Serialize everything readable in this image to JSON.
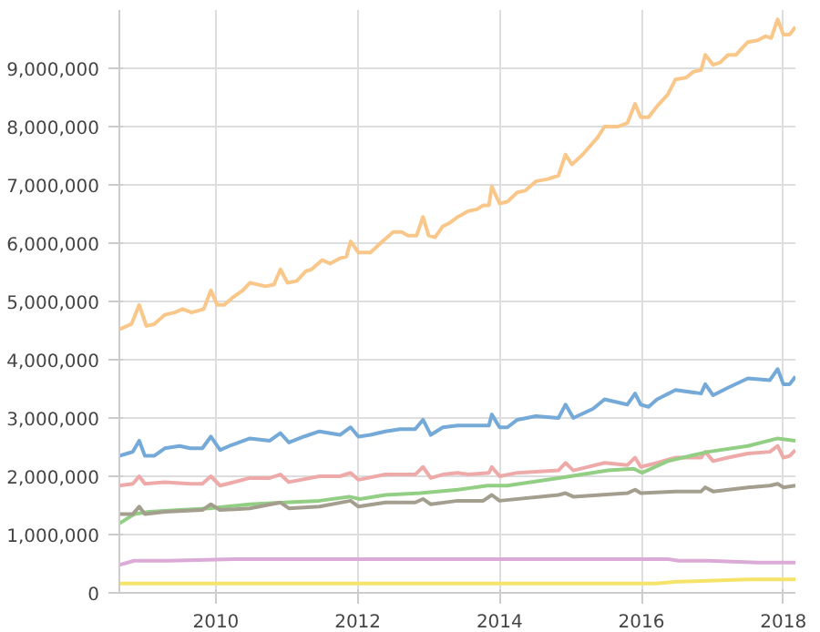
{
  "chart_data": {
    "type": "line",
    "xlim": [
      2008.64,
      2018.17
    ],
    "ylim": [
      0,
      10000000
    ],
    "xticks": [
      2010,
      2012,
      2014,
      2016,
      2018
    ],
    "yticks": [
      0,
      {
        "value": 1000000,
        "label": "1,000,000"
      },
      {
        "value": 2000000,
        "label": "2,000,000"
      },
      {
        "value": 3000000,
        "label": "3,000,000"
      },
      {
        "value": 4000000,
        "label": "4,000,000"
      },
      {
        "value": 5000000,
        "label": "5,000,000"
      },
      {
        "value": 6000000,
        "label": "6,000,000"
      },
      {
        "value": 7000000,
        "label": "7,000,000"
      },
      {
        "value": 8000000,
        "label": "8,000,000"
      },
      {
        "value": 9000000,
        "label": "9,000,000"
      }
    ],
    "grid": true,
    "line_style": "solid",
    "marker": "none",
    "series": [
      {
        "color": "#fac78a",
        "x": [
          2008.64,
          2008.75,
          2008.81,
          2008.92,
          2009.02,
          2009.13,
          2009.28,
          2009.42,
          2009.53,
          2009.66,
          2009.83,
          2009.93,
          2010.02,
          2010.12,
          2010.23,
          2010.38,
          2010.48,
          2010.7,
          2010.82,
          2010.91,
          2011.01,
          2011.14,
          2011.27,
          2011.35,
          2011.5,
          2011.61,
          2011.75,
          2011.84,
          2011.9,
          2012.01,
          2012.18,
          2012.35,
          2012.5,
          2012.62,
          2012.71,
          2012.83,
          2012.92,
          2013.0,
          2013.09,
          2013.2,
          2013.3,
          2013.41,
          2013.56,
          2013.68,
          2013.77,
          2013.85,
          2013.89,
          2014.0,
          2014.11,
          2014.25,
          2014.36,
          2014.51,
          2014.68,
          2014.83,
          2014.93,
          2015.02,
          2015.17,
          2015.38,
          2015.48,
          2015.67,
          2015.8,
          2015.91,
          2015.99,
          2016.1,
          2016.22,
          2016.37,
          2016.48,
          2016.63,
          2016.73,
          2016.84,
          2016.9,
          2017.01,
          2017.11,
          2017.22,
          2017.33,
          2017.5,
          2017.64,
          2017.75,
          2017.83,
          2017.92,
          2018.0,
          2018.09,
          2018.17
        ],
        "values": [
          4520000,
          4580000,
          4610000,
          4940000,
          4580000,
          4610000,
          4770000,
          4810000,
          4870000,
          4810000,
          4870000,
          5190000,
          4940000,
          4940000,
          5060000,
          5190000,
          5320000,
          5260000,
          5290000,
          5550000,
          5320000,
          5350000,
          5520000,
          5550000,
          5710000,
          5650000,
          5740000,
          5770000,
          6030000,
          5840000,
          5840000,
          6030000,
          6190000,
          6190000,
          6130000,
          6130000,
          6450000,
          6130000,
          6100000,
          6290000,
          6350000,
          6450000,
          6550000,
          6580000,
          6650000,
          6650000,
          6970000,
          6680000,
          6710000,
          6870000,
          6900000,
          7060000,
          7100000,
          7160000,
          7520000,
          7350000,
          7520000,
          7810000,
          8000000,
          8000000,
          8060000,
          8390000,
          8160000,
          8160000,
          8350000,
          8550000,
          8810000,
          8840000,
          8940000,
          8970000,
          9230000,
          9060000,
          9100000,
          9230000,
          9230000,
          9450000,
          9480000,
          9550000,
          9520000,
          9840000,
          9580000,
          9580000,
          9710000
        ]
      },
      {
        "color": "#74a9d8",
        "x": [
          2008.64,
          2008.75,
          2008.83,
          2008.92,
          2009.0,
          2009.13,
          2009.28,
          2009.49,
          2009.64,
          2009.81,
          2009.93,
          2010.06,
          2010.19,
          2010.48,
          2010.76,
          2010.91,
          2011.03,
          2011.24,
          2011.46,
          2011.75,
          2011.9,
          2012.01,
          2012.18,
          2012.39,
          2012.6,
          2012.81,
          2012.92,
          2013.03,
          2013.2,
          2013.41,
          2013.56,
          2013.77,
          2013.85,
          2013.89,
          2014.0,
          2014.11,
          2014.25,
          2014.51,
          2014.83,
          2014.93,
          2015.04,
          2015.32,
          2015.48,
          2015.8,
          2015.91,
          2015.99,
          2016.1,
          2016.22,
          2016.48,
          2016.84,
          2016.9,
          2017.01,
          2017.22,
          2017.5,
          2017.81,
          2017.92,
          2018.0,
          2018.09,
          2018.17
        ],
        "values": [
          2350000,
          2390000,
          2420000,
          2610000,
          2350000,
          2350000,
          2480000,
          2520000,
          2480000,
          2480000,
          2680000,
          2450000,
          2520000,
          2650000,
          2610000,
          2740000,
          2580000,
          2680000,
          2770000,
          2710000,
          2840000,
          2680000,
          2710000,
          2770000,
          2810000,
          2810000,
          2970000,
          2710000,
          2840000,
          2870000,
          2870000,
          2870000,
          2870000,
          3060000,
          2840000,
          2840000,
          2970000,
          3030000,
          3000000,
          3230000,
          3000000,
          3160000,
          3320000,
          3230000,
          3420000,
          3230000,
          3190000,
          3320000,
          3480000,
          3420000,
          3580000,
          3390000,
          3520000,
          3680000,
          3650000,
          3840000,
          3580000,
          3580000,
          3710000
        ]
      },
      {
        "color": "#eeaaa8",
        "x": [
          2008.64,
          2008.83,
          2008.92,
          2009.0,
          2009.28,
          2009.64,
          2009.81,
          2009.93,
          2010.06,
          2010.48,
          2010.76,
          2010.91,
          2011.03,
          2011.46,
          2011.75,
          2011.9,
          2012.01,
          2012.39,
          2012.81,
          2012.92,
          2013.03,
          2013.2,
          2013.41,
          2013.56,
          2013.85,
          2013.89,
          2014.0,
          2014.25,
          2014.83,
          2014.93,
          2015.04,
          2015.48,
          2015.8,
          2015.91,
          2015.99,
          2016.22,
          2016.48,
          2016.84,
          2016.9,
          2017.01,
          2017.22,
          2017.5,
          2017.81,
          2017.92,
          2018.0,
          2018.09,
          2018.17
        ],
        "values": [
          1840000,
          1870000,
          2000000,
          1870000,
          1900000,
          1870000,
          1870000,
          2000000,
          1840000,
          1970000,
          1970000,
          2030000,
          1900000,
          2000000,
          2000000,
          2060000,
          1940000,
          2030000,
          2030000,
          2160000,
          1970000,
          2030000,
          2060000,
          2030000,
          2060000,
          2160000,
          2000000,
          2060000,
          2100000,
          2230000,
          2100000,
          2230000,
          2190000,
          2320000,
          2160000,
          2230000,
          2320000,
          2320000,
          2420000,
          2260000,
          2320000,
          2390000,
          2420000,
          2520000,
          2320000,
          2350000,
          2450000
        ]
      },
      {
        "color": "#92cf84",
        "x": [
          2008.64,
          2008.85,
          2009.06,
          2009.49,
          2009.91,
          2010.48,
          2010.97,
          2011.46,
          2011.88,
          2012.03,
          2012.39,
          2012.88,
          2013.41,
          2013.83,
          2014.11,
          2014.83,
          2015.53,
          2015.89,
          2016.01,
          2016.37,
          2016.94,
          2017.5,
          2017.92,
          2018.17
        ],
        "values": [
          1190000,
          1350000,
          1390000,
          1420000,
          1450000,
          1520000,
          1550000,
          1580000,
          1650000,
          1610000,
          1680000,
          1710000,
          1770000,
          1840000,
          1840000,
          1970000,
          2100000,
          2130000,
          2060000,
          2260000,
          2420000,
          2520000,
          2650000,
          2610000
        ]
      },
      {
        "color": "#a39e8e",
        "x": [
          2008.64,
          2008.83,
          2008.92,
          2009.0,
          2009.28,
          2009.81,
          2009.93,
          2010.06,
          2010.48,
          2010.91,
          2011.03,
          2011.46,
          2011.9,
          2012.01,
          2012.39,
          2012.81,
          2012.92,
          2013.03,
          2013.41,
          2013.77,
          2013.89,
          2014.0,
          2014.83,
          2014.93,
          2015.04,
          2015.8,
          2015.91,
          2015.99,
          2016.48,
          2016.84,
          2016.9,
          2017.01,
          2017.5,
          2017.81,
          2017.92,
          2018.0,
          2018.17
        ],
        "values": [
          1350000,
          1350000,
          1480000,
          1350000,
          1390000,
          1420000,
          1520000,
          1420000,
          1450000,
          1550000,
          1450000,
          1480000,
          1580000,
          1480000,
          1550000,
          1550000,
          1610000,
          1520000,
          1580000,
          1580000,
          1680000,
          1580000,
          1680000,
          1710000,
          1650000,
          1710000,
          1770000,
          1710000,
          1740000,
          1740000,
          1810000,
          1740000,
          1810000,
          1840000,
          1870000,
          1810000,
          1840000
        ]
      },
      {
        "color": "#dcaad6",
        "x": [
          2008.64,
          2008.85,
          2009.34,
          2010.27,
          2011.61,
          2012.88,
          2013.41,
          2014.68,
          2016.1,
          2016.37,
          2016.52,
          2016.94,
          2017.64,
          2018.17
        ],
        "values": [
          480000,
          550000,
          550000,
          580000,
          580000,
          580000,
          580000,
          580000,
          580000,
          580000,
          550000,
          550000,
          520000,
          520000
        ]
      },
      {
        "color": "#f5e36a",
        "x": [
          2008.64,
          2012.01,
          2016.2,
          2016.5,
          2017.5,
          2018.17
        ],
        "values": [
          160000,
          160000,
          160000,
          190000,
          230000,
          230000
        ]
      }
    ]
  }
}
